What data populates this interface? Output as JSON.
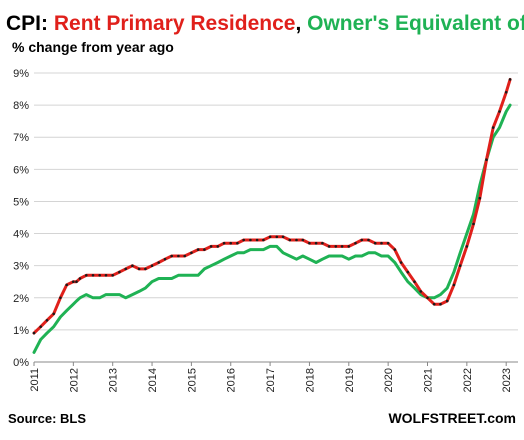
{
  "chart_data": {
    "type": "line",
    "title_parts": [
      {
        "text": "CPI: ",
        "color": "#000000"
      },
      {
        "text": "Rent Primary  Residence",
        "color": "#e0201b"
      },
      {
        "text": ", ",
        "color": "#000000"
      },
      {
        "text": "Owner's Equivalent of Rent",
        "color": "#1fb254"
      }
    ],
    "ylabel": "% change from year ago",
    "x_ticks": [
      "2011",
      "2012",
      "2013",
      "2014",
      "2015",
      "2016",
      "2017",
      "2018",
      "2019",
      "2020",
      "2021",
      "2022",
      "2023"
    ],
    "y_ticks": [
      "0%",
      "1%",
      "2%",
      "3%",
      "4%",
      "5%",
      "6%",
      "7%",
      "8%",
      "9%"
    ],
    "xlim": [
      2011,
      2023.3
    ],
    "ylim": [
      0,
      9
    ],
    "grid": "horizontal",
    "series": [
      {
        "name": "Rent Primary  Residence",
        "color": "#e0201b",
        "marker_color": "#1a1a1a",
        "x": [
          2011.0,
          2011.17,
          2011.33,
          2011.5,
          2011.67,
          2011.83,
          2012.0,
          2012.08,
          2012.17,
          2012.33,
          2012.5,
          2012.67,
          2012.83,
          2013.0,
          2013.17,
          2013.33,
          2013.5,
          2013.67,
          2013.83,
          2014.0,
          2014.17,
          2014.33,
          2014.5,
          2014.67,
          2014.83,
          2015.0,
          2015.17,
          2015.33,
          2015.5,
          2015.67,
          2015.83,
          2016.0,
          2016.17,
          2016.33,
          2016.5,
          2016.67,
          2016.83,
          2017.0,
          2017.17,
          2017.33,
          2017.5,
          2017.67,
          2017.83,
          2018.0,
          2018.17,
          2018.33,
          2018.5,
          2018.67,
          2018.83,
          2019.0,
          2019.17,
          2019.33,
          2019.5,
          2019.67,
          2019.83,
          2020.0,
          2020.17,
          2020.33,
          2020.5,
          2020.67,
          2020.83,
          2021.0,
          2021.17,
          2021.33,
          2021.5,
          2021.67,
          2021.83,
          2022.0,
          2022.17,
          2022.33,
          2022.5,
          2022.67,
          2022.83,
          2023.0,
          2023.1
        ],
        "y": [
          0.9,
          1.1,
          1.3,
          1.5,
          2.0,
          2.4,
          2.5,
          2.5,
          2.6,
          2.7,
          2.7,
          2.7,
          2.7,
          2.7,
          2.8,
          2.9,
          3.0,
          2.9,
          2.9,
          3.0,
          3.1,
          3.2,
          3.3,
          3.3,
          3.3,
          3.4,
          3.5,
          3.5,
          3.6,
          3.6,
          3.7,
          3.7,
          3.7,
          3.8,
          3.8,
          3.8,
          3.8,
          3.9,
          3.9,
          3.9,
          3.8,
          3.8,
          3.8,
          3.7,
          3.7,
          3.7,
          3.6,
          3.6,
          3.6,
          3.6,
          3.7,
          3.8,
          3.8,
          3.7,
          3.7,
          3.7,
          3.5,
          3.1,
          2.8,
          2.5,
          2.2,
          2.0,
          1.8,
          1.8,
          1.9,
          2.4,
          3.0,
          3.6,
          4.3,
          5.1,
          6.3,
          7.3,
          7.8,
          8.4,
          8.8
        ]
      },
      {
        "name": "Owner's Equivalent of Rent",
        "color": "#1fb254",
        "x": [
          2011.0,
          2011.17,
          2011.33,
          2011.5,
          2011.67,
          2011.83,
          2012.0,
          2012.08,
          2012.17,
          2012.33,
          2012.5,
          2012.67,
          2012.83,
          2013.0,
          2013.17,
          2013.33,
          2013.5,
          2013.67,
          2013.83,
          2014.0,
          2014.17,
          2014.33,
          2014.5,
          2014.67,
          2014.83,
          2015.0,
          2015.17,
          2015.33,
          2015.5,
          2015.67,
          2015.83,
          2016.0,
          2016.17,
          2016.33,
          2016.5,
          2016.67,
          2016.83,
          2017.0,
          2017.17,
          2017.33,
          2017.5,
          2017.67,
          2017.83,
          2018.0,
          2018.17,
          2018.33,
          2018.5,
          2018.67,
          2018.83,
          2019.0,
          2019.17,
          2019.33,
          2019.5,
          2019.67,
          2019.83,
          2020.0,
          2020.17,
          2020.33,
          2020.5,
          2020.67,
          2020.83,
          2021.0,
          2021.17,
          2021.33,
          2021.5,
          2021.67,
          2021.83,
          2022.0,
          2022.17,
          2022.33,
          2022.5,
          2022.67,
          2022.83,
          2023.0,
          2023.1
        ],
        "y": [
          0.3,
          0.7,
          0.9,
          1.1,
          1.4,
          1.6,
          1.8,
          1.9,
          2.0,
          2.1,
          2.0,
          2.0,
          2.1,
          2.1,
          2.1,
          2.0,
          2.1,
          2.2,
          2.3,
          2.5,
          2.6,
          2.6,
          2.6,
          2.7,
          2.7,
          2.7,
          2.7,
          2.9,
          3.0,
          3.1,
          3.2,
          3.3,
          3.4,
          3.4,
          3.5,
          3.5,
          3.5,
          3.6,
          3.6,
          3.4,
          3.3,
          3.2,
          3.3,
          3.2,
          3.1,
          3.2,
          3.3,
          3.3,
          3.3,
          3.2,
          3.3,
          3.3,
          3.4,
          3.4,
          3.3,
          3.3,
          3.1,
          2.8,
          2.5,
          2.3,
          2.1,
          2.0,
          2.0,
          2.1,
          2.3,
          2.8,
          3.4,
          4.0,
          4.6,
          5.5,
          6.3,
          7.0,
          7.3,
          7.8,
          8.0
        ]
      }
    ],
    "source": "Source: BLS",
    "brand": "WOLFSTREET.com"
  }
}
